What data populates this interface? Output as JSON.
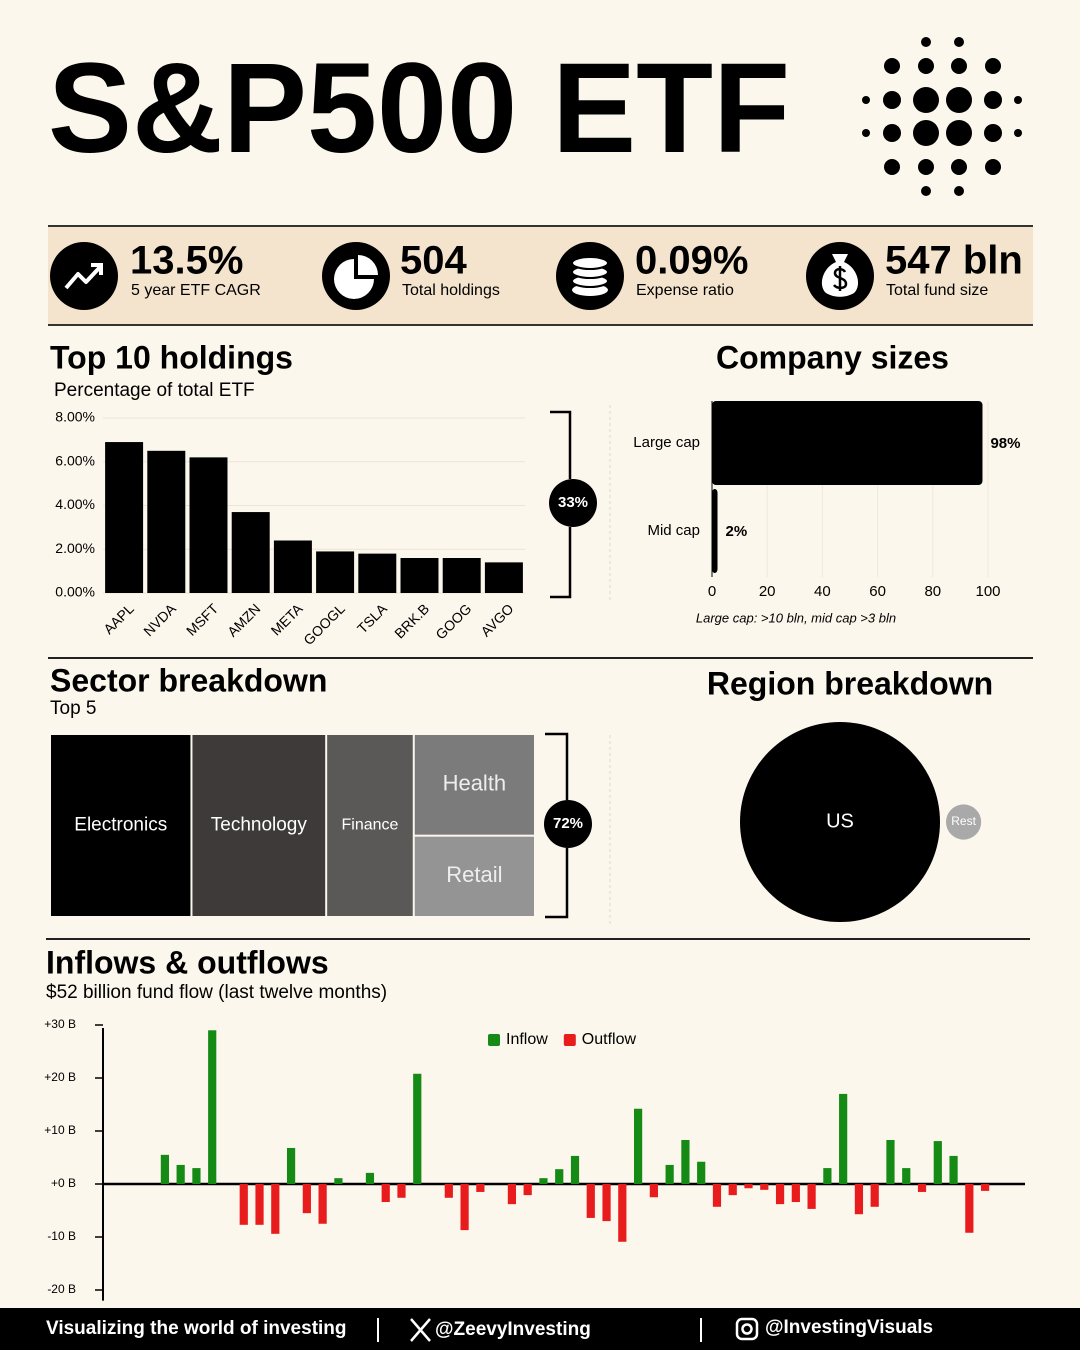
{
  "header": {
    "title": "S&P500 ETF"
  },
  "stats": [
    {
      "value": "13.5%",
      "label": "5 year ETF CAGR"
    },
    {
      "value": "504",
      "label": "Total holdings"
    },
    {
      "value": "0.09%",
      "label": "Expense ratio"
    },
    {
      "value": "547 bln",
      "label": "Total fund size"
    }
  ],
  "chart_data": [
    {
      "type": "bar",
      "title": "Top 10 holdings",
      "subtitle": "Percentage of total ETF",
      "categories": [
        "AAPL",
        "NVDA",
        "MSFT",
        "AMZN",
        "META",
        "GOOGL",
        "TSLA",
        "BRK.B",
        "GOOG",
        "AVGO"
      ],
      "values": [
        6.9,
        6.5,
        6.2,
        3.7,
        2.4,
        1.9,
        1.8,
        1.6,
        1.6,
        1.4
      ],
      "color": "#000000",
      "ylim": [
        0,
        8
      ],
      "yticks": [
        {
          "value": 0,
          "label": "0.00%"
        },
        {
          "value": 2,
          "label": "2.00%"
        },
        {
          "value": 4,
          "label": "4.00%"
        },
        {
          "value": 6,
          "label": "6.00%"
        },
        {
          "value": 8,
          "label": "8.00%"
        }
      ],
      "grid": true,
      "annotation": "33%"
    },
    {
      "type": "barh",
      "title": "Company sizes",
      "categories": [
        "Large cap",
        "Mid cap"
      ],
      "values": [
        98,
        2
      ],
      "value_labels": [
        "98%",
        "2%"
      ],
      "color": "#000000",
      "xlim": [
        0,
        100
      ],
      "xticks": [
        0,
        20,
        40,
        60,
        80,
        100
      ],
      "grid": true,
      "note": "Large cap: >10 bln, mid cap >3 bln"
    },
    {
      "type": "treemap",
      "title": "Sector breakdown",
      "subtitle": "Top 5",
      "categories": [
        "Electronics",
        "Technology",
        "Finance",
        "Health",
        "Retail"
      ],
      "values": [
        21,
        20,
        13,
        10,
        8
      ],
      "colors": [
        "#000000",
        "#3d3a39",
        "#5a5958",
        "#7b7b7b",
        "#949494"
      ],
      "annotation": "72%"
    },
    {
      "type": "bubble",
      "title": "Region breakdown",
      "categories": [
        "US",
        "Rest"
      ],
      "values": [
        97,
        3
      ],
      "colors": [
        "#000000",
        "#a9a9a9"
      ]
    },
    {
      "type": "bar",
      "title": "Inflows & outflows",
      "subtitle": "$52 billion fund flow (last twelve months)",
      "categories": [
        null,
        null,
        null,
        null,
        null,
        null,
        null,
        null,
        null,
        null,
        null,
        null,
        null,
        null,
        null,
        null,
        null,
        null,
        null,
        null,
        null,
        null,
        null,
        null,
        null,
        null,
        null,
        null,
        null,
        null,
        null,
        null,
        null,
        null,
        null,
        null,
        null,
        null,
        null,
        null,
        null,
        null,
        null,
        null,
        null,
        null,
        null,
        null,
        null,
        null,
        null,
        null,
        null
      ],
      "series": [
        {
          "name": "Inflow",
          "color": "#158a15",
          "values": [
            5.5,
            3.6,
            3.0,
            29,
            null,
            null,
            null,
            null,
            6.8,
            null,
            null,
            1.1,
            null,
            2.1,
            null,
            null,
            20.8,
            null,
            null,
            null,
            null,
            null,
            null,
            null,
            1.1,
            2.8,
            5.3,
            null,
            null,
            null,
            14.2,
            null,
            3.6,
            8.3,
            4.2,
            null,
            null,
            null,
            null,
            null,
            null,
            null,
            3.0,
            17.0,
            null,
            null,
            8.3,
            3.0,
            null,
            8.1,
            5.3,
            null,
            null
          ]
        },
        {
          "name": "Outflow",
          "color": "#e81c1c",
          "values": [
            null,
            null,
            null,
            null,
            null,
            -7.7,
            -7.7,
            -9.4,
            null,
            -5.5,
            -7.5,
            null,
            null,
            null,
            -3.4,
            -2.6,
            null,
            null,
            -2.6,
            -8.7,
            -1.5,
            null,
            -3.8,
            -2.1,
            null,
            null,
            null,
            -6.4,
            -7.0,
            -10.9,
            null,
            -2.5,
            null,
            null,
            null,
            -4.3,
            -2.1,
            -0.8,
            -1.1,
            -3.8,
            -3.4,
            -4.7,
            null,
            null,
            -5.7,
            -4.3,
            null,
            null,
            -1.5,
            null,
            null,
            -9.2,
            -1.3
          ]
        }
      ],
      "ylim": [
        -22,
        30
      ],
      "yticks": [
        {
          "value": -20,
          "label": "-20 B"
        },
        {
          "value": -10,
          "label": "-10 B"
        },
        {
          "value": 0,
          "label": "+0 B"
        },
        {
          "value": 10,
          "label": "+10 B"
        },
        {
          "value": 20,
          "label": "+20 B"
        },
        {
          "value": 30,
          "label": "+30 B"
        }
      ],
      "grid": false,
      "legend": "top"
    }
  ],
  "footer": {
    "tagline": "Visualizing the world of investing",
    "x_handle": "@ZeevyInvesting",
    "instagram_handle": "@InvestingVisuals"
  }
}
